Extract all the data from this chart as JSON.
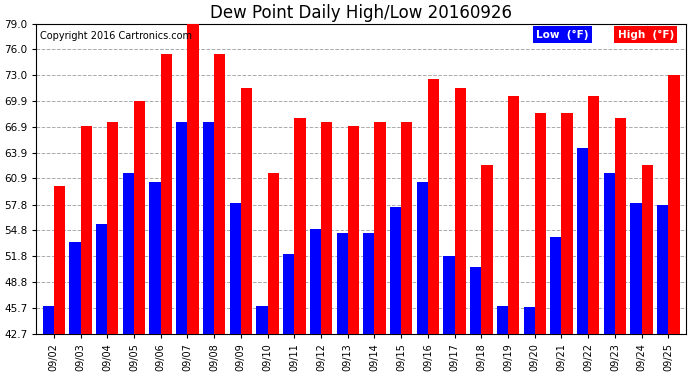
{
  "title": "Dew Point Daily High/Low 20160926",
  "copyright": "Copyright 2016 Cartronics.com",
  "dates": [
    "09/02",
    "09/03",
    "09/04",
    "09/05",
    "09/06",
    "09/07",
    "09/08",
    "09/09",
    "09/10",
    "09/11",
    "09/12",
    "09/13",
    "09/14",
    "09/15",
    "09/16",
    "09/17",
    "09/18",
    "09/19",
    "09/20",
    "09/21",
    "09/22",
    "09/23",
    "09/24",
    "09/25"
  ],
  "highs": [
    60.0,
    67.0,
    67.5,
    70.0,
    75.5,
    79.5,
    75.5,
    71.5,
    61.5,
    68.0,
    67.5,
    67.0,
    67.5,
    67.5,
    72.5,
    71.5,
    62.5,
    70.5,
    68.5,
    68.5,
    70.5,
    68.0,
    62.5,
    73.0
  ],
  "lows": [
    46.0,
    53.5,
    55.5,
    61.5,
    60.5,
    67.5,
    67.5,
    58.0,
    46.0,
    52.0,
    55.0,
    54.5,
    54.5,
    57.5,
    60.5,
    51.8,
    50.5,
    46.0,
    45.8,
    54.0,
    64.5,
    61.5,
    58.0,
    57.8
  ],
  "high_color": "#ff0000",
  "low_color": "#0000ff",
  "bg_color": "#ffffff",
  "grid_color": "#aaaaaa",
  "ylim_min": 42.7,
  "ylim_max": 79.0,
  "yticks": [
    42.7,
    45.7,
    48.8,
    51.8,
    54.8,
    57.8,
    60.9,
    63.9,
    66.9,
    69.9,
    73.0,
    76.0,
    79.0
  ],
  "title_fontsize": 12,
  "copyright_fontsize": 7,
  "legend_low_label": "Low  (°F)",
  "legend_high_label": "High  (°F)"
}
